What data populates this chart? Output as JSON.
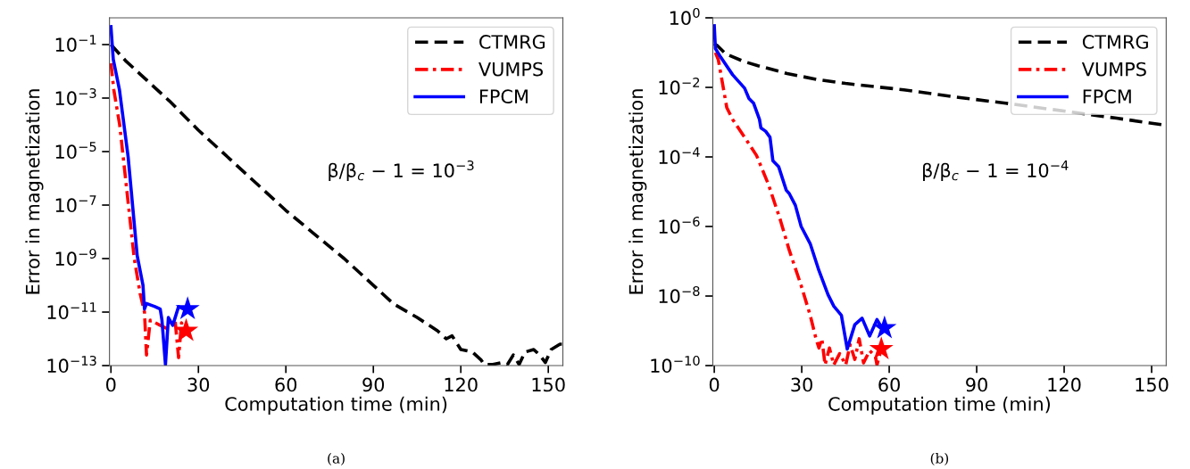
{
  "chart_data": [
    {
      "type": "line",
      "xlabel": "Computation time (min)",
      "ylabel": "Error in magnetization",
      "log": "y",
      "legend": "top right",
      "grid": false,
      "xlim": [
        -0.5,
        155
      ],
      "xticks": [
        0,
        30,
        60,
        90,
        120,
        150
      ],
      "ylim": [
        1e-13,
        1
      ],
      "yticks": [
        {
          "value": 0.1,
          "label": "10$^{−1}$"
        },
        {
          "value": 0.001,
          "label": "10$^{−3}$"
        },
        {
          "value": 1e-05,
          "label": "10$^{−5}$"
        },
        {
          "value": 1e-07,
          "label": "10$^{−7}$"
        },
        {
          "value": 1e-09,
          "label": "10$^{−9}$"
        },
        {
          "value": 1e-11,
          "label": "10$^{−11}$"
        },
        {
          "value": 1e-13,
          "label": "10$^{−13}$"
        }
      ],
      "annotations": [
        "β/β$_{c}$ − 1 = 10$^{−3}$",
        "(a)"
      ],
      "series": [
        {
          "name": "CTMRG",
          "color": "#000000",
          "line_style": "dashed",
          "x": [
            0,
            5,
            10,
            20,
            30,
            40,
            50,
            60,
            70,
            80,
            87,
            97,
            105,
            112,
            115,
            117,
            120,
            124,
            127,
            128,
            131,
            134,
            136,
            138,
            140,
            142,
            145,
            147,
            149,
            151,
            154,
            155
          ],
          "values": [
            0.1,
            0.025,
            0.0079,
            0.00079,
            6.3e-05,
            6.3e-06,
            6.3e-07,
            6.3e-08,
            7.9e-09,
            1e-09,
            2e-10,
            2e-11,
            6.3e-12,
            2e-12,
            1e-12,
            1.3e-12,
            4e-13,
            3.2e-13,
            1.6e-13,
            1.1e-13,
            1.1e-13,
            1.3e-13,
            1.1e-13,
            2.5e-13,
            1.1e-13,
            3.2e-13,
            4e-13,
            2.5e-13,
            1.3e-13,
            4e-13,
            6.3e-13,
            6.3e-13
          ]
        },
        {
          "name": "VUMPS",
          "color": "#ff0000",
          "line_style": "dashdot",
          "x": [
            0,
            1,
            3,
            5,
            8,
            10,
            11.5,
            12.2,
            13.5,
            16.9,
            19,
            22,
            23.2,
            24.2,
            25
          ],
          "values": [
            0.02,
            0.002,
            0.0001,
            1e-06,
            1e-09,
            5e-11,
            1e-11,
            2.5e-13,
            5e-12,
            3.2e-12,
            2.5e-12,
            5e-12,
            2e-13,
            4e-12,
            2e-12
          ]
        },
        {
          "name": "FPCM",
          "color": "#0000ff",
          "line_style": "solid",
          "x": [
            0,
            0.8,
            2.9,
            5.9,
            9,
            11,
            11.5,
            12.2,
            15.1,
            16.9,
            17.5,
            18.7,
            19.7,
            21.2,
            23.2,
            25
          ],
          "values": [
            0.47,
            0.028,
            0.0021,
            6.3e-06,
            1.3e-09,
            1e-10,
            1.3e-11,
            2.1e-11,
            1.6e-11,
            1.3e-11,
            5e-12,
            1.1e-13,
            6.3e-12,
            3.2e-12,
            1.6e-11,
            1.3e-11
          ]
        },
        {
          "type": "scatter",
          "marker": "star",
          "color": "#ff0000",
          "x": [
            25.8
          ],
          "values": [
            2e-12
          ]
        },
        {
          "type": "scatter",
          "marker": "star",
          "color": "#0000ff",
          "x": [
            26.3
          ],
          "values": [
            1.3e-11
          ]
        }
      ]
    },
    {
      "type": "line",
      "xlabel": "Computation time (min)",
      "ylabel": "Error in magnetization",
      "log": "y",
      "legend": "top right",
      "grid": false,
      "xlim": [
        -0.5,
        155
      ],
      "xticks": [
        0,
        30,
        60,
        90,
        120,
        150
      ],
      "ylim": [
        1e-10,
        1
      ],
      "yticks": [
        {
          "value": 1,
          "label": "10$^{0}$"
        },
        {
          "value": 0.01,
          "label": "10$^{−2}$"
        },
        {
          "value": 0.0001,
          "label": "10$^{−4}$"
        },
        {
          "value": 1e-06,
          "label": "10$^{−6}$"
        },
        {
          "value": 1e-08,
          "label": "10$^{−8}$"
        },
        {
          "value": 1e-10,
          "label": "10$^{−10}$"
        }
      ],
      "annotations": [
        "β/β$_{c}$ − 1 = 10$^{−4}$",
        "(b)"
      ],
      "series": [
        {
          "name": "CTMRG",
          "color": "#000000",
          "line_style": "dashed",
          "x": [
            0,
            1,
            4,
            10,
            15,
            25,
            35,
            45,
            55,
            65,
            85,
            100,
            138,
            155
          ],
          "values": [
            0.18,
            0.16,
            0.091,
            0.056,
            0.042,
            0.025,
            0.017,
            0.013,
            0.0105,
            0.0085,
            0.005,
            0.0035,
            0.0013,
            0.00081
          ]
        },
        {
          "name": "VUMPS",
          "color": "#ff0000",
          "line_style": "dashdot",
          "x": [
            0.4,
            1.4,
            4.3,
            6.3,
            10.4,
            14.5,
            18.6,
            22.7,
            25.7,
            29.8,
            32.9,
            34.9,
            35.9,
            36.9,
            38,
            39.5,
            41,
            43,
            45.1,
            46.6,
            48.2,
            49.7,
            51.2,
            53.3,
            55.3,
            55.8,
            57.3
          ],
          "values": [
            0.1,
            0.062,
            0.0026,
            0.0012,
            0.00037,
            0.00011,
            1.6e-05,
            1.5e-06,
            2.1e-07,
            2e-08,
            2.8e-09,
            5.9e-10,
            3.2e-10,
            5.9e-10,
            1.05e-10,
            3.2e-10,
            1.05e-10,
            2.2e-10,
            1.05e-10,
            4e-10,
            1.5e-10,
            5.9e-10,
            1.2e-10,
            2.7e-10,
            1.8e-10,
            1.05e-10,
            3e-10
          ]
        },
        {
          "name": "FPCM",
          "color": "#0000ff",
          "line_style": "solid",
          "x": [
            0,
            0.4,
            2.2,
            6.3,
            10.4,
            11.9,
            13.5,
            15.5,
            16,
            17.6,
            19.1,
            20.1,
            22.1,
            24.7,
            25.7,
            27.8,
            29.8,
            32.9,
            35.9,
            39,
            41,
            43.6,
            45.6,
            48.2,
            50.7,
            53.3,
            55.8,
            57.3
          ],
          "values": [
            0.59,
            0.13,
            0.074,
            0.023,
            0.0095,
            0.0048,
            0.0035,
            0.0012,
            0.00068,
            0.00055,
            0.00037,
            7.8e-05,
            5.2e-05,
            1.1e-05,
            8.9e-06,
            4.1e-06,
            1e-06,
            3.2e-07,
            5.4e-08,
            1.1e-08,
            5.1e-09,
            2.8e-09,
            3e-10,
            1.5e-09,
            2.3e-09,
            7.1e-10,
            2.1e-09,
            1.3e-09
          ]
        },
        {
          "type": "scatter",
          "marker": "star",
          "color": "#ff0000",
          "x": [
            57.3
          ],
          "values": [
            3e-10
          ]
        },
        {
          "type": "scatter",
          "marker": "star",
          "color": "#0000ff",
          "x": [
            58.4
          ],
          "values": [
            1.2e-09
          ]
        }
      ]
    }
  ]
}
